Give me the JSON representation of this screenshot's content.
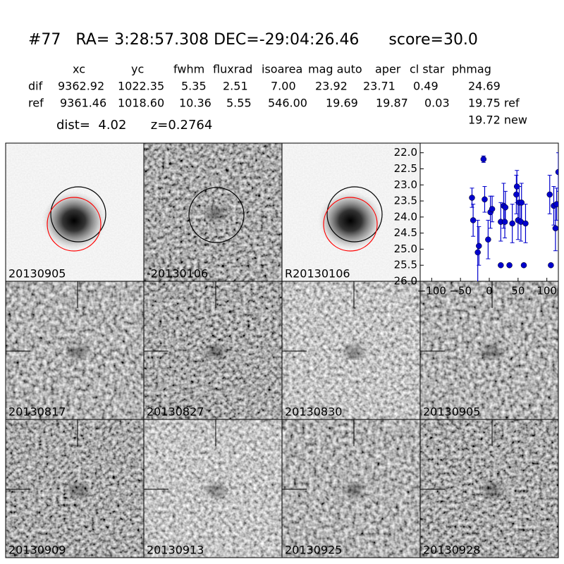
{
  "header": {
    "title": "#77   RA= 3:28:57.308 DEC=-29:04:26.46      score=30.0"
  },
  "table": {
    "columns": [
      "xc",
      "yc",
      "fwhm",
      "fluxrad",
      "isoarea",
      "mag auto",
      "aper",
      "cl star",
      "phmag"
    ],
    "rows": [
      {
        "label": "dif",
        "cells": [
          "9362.92",
          "1022.35",
          "5.35",
          "2.51",
          "7.00",
          "23.92",
          "23.71",
          "0.49",
          "24.69"
        ]
      },
      {
        "label": "ref",
        "cells": [
          "9361.46",
          "1018.60",
          "10.36",
          "5.55",
          "546.00",
          "19.69",
          "19.87",
          "0.03",
          "19.75 ref"
        ]
      }
    ],
    "extra": "19.72 new"
  },
  "info": "dist=  4.02      z=0.2764",
  "panels": [
    {
      "label": "20130905",
      "color": "#000000"
    },
    {
      "label": "-20130106",
      "color": "#000000"
    },
    {
      "label": "R20130106",
      "color": "#000000"
    },
    {
      "label": "20130817",
      "color": "#000000"
    },
    {
      "label": "20130827",
      "color": "#000000"
    },
    {
      "label": "20130830",
      "color": "#000000"
    },
    {
      "label": "20130905",
      "color": "#ff0000"
    },
    {
      "label": "20130909",
      "color": "#000000"
    },
    {
      "label": "20130913",
      "color": "#000000"
    },
    {
      "label": "20130925",
      "color": "#000000"
    },
    {
      "label": "20130928",
      "color": "#000000"
    }
  ],
  "chart_data": {
    "type": "scatter",
    "xlim": [
      -120,
      120
    ],
    "ylim": [
      26.0,
      21.7
    ],
    "xticks": [
      {
        "value": -100,
        "label": "−100"
      },
      {
        "value": -50,
        "label": "−50"
      },
      0,
      50,
      100
    ],
    "yticks": [
      {
        "value": 22,
        "label": "22.0"
      },
      {
        "value": 22.5,
        "label": "22.5"
      },
      {
        "value": 23,
        "label": "23.0"
      },
      {
        "value": 23.5,
        "label": "23.5"
      },
      {
        "value": 24,
        "label": "24.0"
      },
      {
        "value": 24.5,
        "label": "24.5"
      },
      {
        "value": 25,
        "label": "25.0"
      },
      {
        "value": 25.5,
        "label": "25.5"
      },
      {
        "value": 26,
        "label": "26.0"
      }
    ],
    "series": [
      {
        "color": "#0000cc",
        "x": [
          -30,
          -28,
          -20,
          -18,
          -10,
          -8,
          -2,
          2,
          5,
          20,
          20,
          25,
          27,
          28,
          35,
          40,
          47,
          48,
          50,
          52,
          55,
          56,
          60,
          63,
          105,
          107,
          112,
          115,
          117,
          120
        ],
        "values": [
          23.4,
          24.1,
          25.1,
          24.9,
          22.2,
          23.45,
          24.7,
          23.85,
          23.75,
          25.5,
          24.15,
          23.65,
          24.15,
          23.7,
          25.5,
          24.2,
          23.3,
          23.05,
          24.1,
          23.55,
          24.15,
          23.55,
          25.5,
          24.2,
          23.3,
          25.5,
          23.65,
          24.35,
          23.6,
          22.6
        ],
        "errors": [
          0.3,
          0.5,
          1.0,
          0.6,
          0.1,
          0.4,
          0.6,
          0.5,
          0.4,
          0.05,
          0.6,
          0.7,
          0.5,
          0.5,
          0.05,
          0.6,
          0.6,
          0.5,
          0.6,
          0.5,
          0.6,
          0.6,
          0.05,
          0.6,
          0.6,
          0.05,
          0.6,
          0.7,
          0.5,
          0.6
        ]
      }
    ]
  }
}
